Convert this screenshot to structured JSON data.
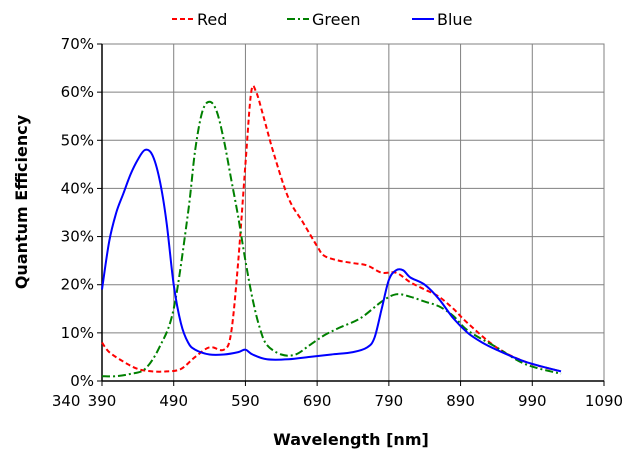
{
  "chart_data": {
    "type": "line",
    "xlabel": "Wavelength [nm]",
    "ylabel": "Quantum Efficiency",
    "xlim": [
      390,
      1090
    ],
    "ylim": [
      0,
      70
    ],
    "x_ticks": [
      340,
      390,
      490,
      590,
      690,
      790,
      890,
      990,
      1090
    ],
    "x_tick_labels": [
      "340",
      "390",
      "490",
      "590",
      "690",
      "790",
      "890",
      "990",
      "1090"
    ],
    "y_ticks": [
      0,
      10,
      20,
      30,
      40,
      50,
      60,
      70
    ],
    "y_tick_labels": [
      "0%",
      "10%",
      "20%",
      "30%",
      "40%",
      "50%",
      "60%",
      "70%"
    ],
    "grid": true,
    "legend": "top",
    "series": [
      {
        "name": "Red",
        "color": "#ff0000",
        "style": "dashed",
        "x": [
          390,
          400,
          420,
          440,
          460,
          480,
          500,
          520,
          540,
          560,
          570,
          580,
          590,
          598,
          605,
          615,
          630,
          650,
          670,
          690,
          700,
          720,
          740,
          760,
          780,
          800,
          820,
          840,
          860,
          880,
          900,
          940,
          980,
          1030
        ],
        "y": [
          8,
          6,
          4,
          2.5,
          2,
          2,
          2.5,
          5,
          7,
          6.5,
          10,
          25,
          45,
          60,
          60,
          55,
          47,
          38,
          33,
          28,
          26,
          25,
          24.5,
          24,
          22.5,
          22.5,
          20.5,
          19,
          17.5,
          15,
          12,
          7,
          4,
          2
        ]
      },
      {
        "name": "Green",
        "color": "#008000",
        "style": "dashdot",
        "x": [
          390,
          410,
          430,
          450,
          470,
          490,
          510,
          520,
          530,
          540,
          550,
          560,
          570,
          580,
          590,
          600,
          610,
          620,
          640,
          660,
          680,
          700,
          720,
          750,
          780,
          800,
          820,
          840,
          860,
          880,
          900,
          940,
          980,
          1030
        ],
        "y": [
          1,
          1,
          1.5,
          2.5,
          7,
          15,
          35,
          48,
          56,
          58,
          56,
          50,
          42,
          34,
          25,
          17,
          11,
          7.5,
          5.5,
          5.5,
          7.5,
          9.5,
          11,
          13,
          16.5,
          18,
          17.5,
          16.5,
          15.5,
          13.5,
          10.5,
          7,
          3.5,
          1.5
        ]
      },
      {
        "name": "Blue",
        "color": "#0000ff",
        "style": "solid",
        "x": [
          390,
          400,
          410,
          420,
          430,
          440,
          450,
          460,
          470,
          480,
          490,
          500,
          510,
          520,
          540,
          560,
          580,
          590,
          600,
          620,
          650,
          680,
          710,
          740,
          760,
          770,
          780,
          790,
          800,
          810,
          820,
          840,
          860,
          880,
          900,
          920,
          940,
          980,
          1030
        ],
        "y": [
          19,
          29,
          35,
          39,
          43,
          46,
          48,
          47,
          42,
          33,
          20,
          12,
          8,
          6.5,
          5.5,
          5.5,
          6,
          6.5,
          5.5,
          4.5,
          4.5,
          5,
          5.5,
          6,
          7,
          9,
          15,
          21,
          23,
          23,
          21.5,
          20,
          17,
          13,
          10,
          8,
          6.5,
          4,
          2
        ]
      }
    ]
  }
}
